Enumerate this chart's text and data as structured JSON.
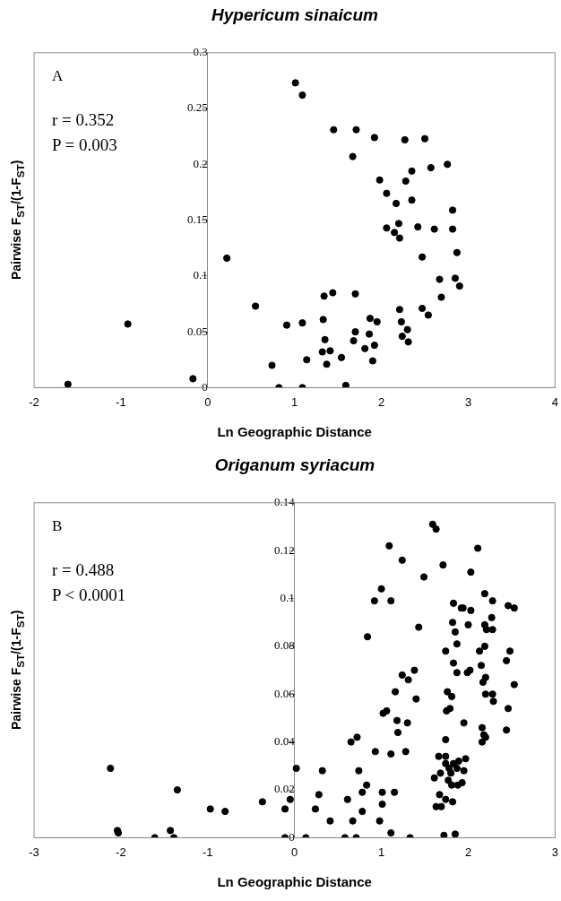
{
  "chart_data": [
    {
      "type": "scatter",
      "title": "Hypericum sinaicum",
      "xlabel": "Ln Geographic Distance",
      "ylabel": "Pairwise F$_{ST}$/(1-F$_{ST}$)",
      "annotations": [
        "A",
        "r = 0.352",
        "P = 0.003"
      ],
      "marker": "circle",
      "grid": false,
      "legend": false,
      "xlim": [
        -2,
        4
      ],
      "xticks": [
        -2,
        -1,
        0,
        1,
        2,
        3,
        4
      ],
      "ylim": [
        0,
        0.3
      ],
      "yticks": [
        0,
        0.05,
        0.1,
        0.15,
        0.2,
        0.25,
        0.3
      ],
      "series": [
        {
          "color": "#000000",
          "x": [
            -1.61,
            -0.92,
            -0.17,
            0.22,
            0.55,
            0.74,
            0.82,
            0.91,
            1.01,
            1.09,
            1.09,
            1.09,
            1.14,
            1.32,
            1.33,
            1.34,
            1.35,
            1.37,
            1.41,
            1.44,
            1.45,
            1.54,
            1.59,
            1.67,
            1.68,
            1.7,
            1.7,
            1.71,
            1.81,
            1.86,
            1.87,
            1.9,
            1.92,
            1.92,
            1.95,
            1.98,
            2.06,
            2.06,
            2.15,
            2.17,
            2.2,
            2.21,
            2.21,
            2.23,
            2.24,
            2.27,
            2.28,
            2.3,
            2.31,
            2.35,
            2.35,
            2.42,
            2.47,
            2.47,
            2.5,
            2.54,
            2.57,
            2.61,
            2.67,
            2.69,
            2.76,
            2.82,
            2.82,
            2.85,
            2.87,
            2.9
          ],
          "values": [
            0.003,
            0.057,
            0.008,
            0.116,
            0.073,
            0.02,
            0.0,
            0.056,
            0.273,
            0.262,
            0.058,
            0.0,
            0.025,
            0.032,
            0.061,
            0.082,
            0.043,
            0.021,
            0.033,
            0.085,
            0.231,
            0.027,
            0.002,
            0.207,
            0.042,
            0.05,
            0.084,
            0.231,
            0.035,
            0.048,
            0.062,
            0.024,
            0.224,
            0.038,
            0.059,
            0.186,
            0.174,
            0.143,
            0.139,
            0.165,
            0.147,
            0.134,
            0.07,
            0.059,
            0.046,
            0.222,
            0.185,
            0.052,
            0.041,
            0.194,
            0.168,
            0.144,
            0.117,
            0.071,
            0.223,
            0.065,
            0.197,
            0.142,
            0.097,
            0.081,
            0.2,
            0.159,
            0.142,
            0.098,
            0.121,
            0.091
          ]
        }
      ]
    },
    {
      "type": "scatter",
      "title": "Origanum syriacum",
      "xlabel": "Ln Geographic Distance",
      "ylabel": "Pairwise F$_{ST}$/(1-F$_{ST}$)",
      "annotations": [
        "B",
        "r = 0.488",
        "P < 0.0001"
      ],
      "marker": "circle",
      "grid": false,
      "legend": false,
      "xlim": [
        -3,
        3
      ],
      "xticks": [
        -3,
        -2,
        -1,
        0,
        1,
        2,
        3
      ],
      "ylim": [
        0,
        0.14
      ],
      "yticks": [
        0,
        0.02,
        0.04,
        0.06,
        0.08,
        0.1,
        0.12,
        0.14
      ],
      "series": [
        {
          "color": "#000000",
          "x": [
            -2.12,
            -2.04,
            -2.03,
            -1.61,
            -1.43,
            -1.39,
            -1.35,
            -0.97,
            -0.8,
            -0.37,
            -0.11,
            -0.11,
            -0.05,
            0.02,
            0.13,
            0.24,
            0.28,
            0.32,
            0.41,
            0.58,
            0.61,
            0.65,
            0.67,
            0.71,
            0.72,
            0.74,
            0.78,
            0.78,
            0.83,
            0.84,
            0.92,
            0.93,
            0.98,
            1.0,
            1.01,
            1.01,
            1.02,
            1.06,
            1.09,
            1.11,
            1.11,
            1.11,
            1.15,
            1.16,
            1.18,
            1.19,
            1.24,
            1.24,
            1.28,
            1.3,
            1.31,
            1.33,
            1.38,
            1.4,
            1.43,
            1.49,
            1.59,
            1.63,
            1.61,
            1.63,
            1.66,
            1.67,
            1.68,
            1.69,
            1.71,
            1.72,
            1.74,
            1.74,
            1.74,
            1.74,
            1.74,
            1.75,
            1.76,
            1.77,
            1.78,
            1.79,
            1.8,
            1.81,
            1.81,
            1.82,
            1.82,
            1.83,
            1.83,
            1.83,
            1.85,
            1.85,
            1.87,
            1.87,
            1.87,
            1.88,
            1.89,
            1.92,
            1.93,
            1.94,
            1.95,
            1.95,
            1.97,
            1.99,
            2.0,
            2.02,
            2.03,
            2.03,
            2.11,
            2.13,
            2.15,
            2.16,
            2.16,
            2.17,
            2.18,
            2.19,
            2.19,
            2.19,
            2.2,
            2.2,
            2.2,
            2.21,
            2.27,
            2.28,
            2.28,
            2.28,
            2.29,
            2.44,
            2.44,
            2.46,
            2.46,
            2.48,
            2.53,
            2.53
          ],
          "values": [
            0.029,
            0.003,
            0.002,
            0.0,
            0.003,
            0.0,
            0.02,
            0.012,
            0.011,
            0.015,
            0.012,
            0.0,
            0.016,
            0.029,
            0.0,
            0.012,
            0.018,
            0.028,
            0.007,
            0.0,
            0.016,
            0.04,
            0.007,
            0.0,
            0.042,
            0.028,
            0.011,
            0.019,
            0.022,
            0.084,
            0.099,
            0.036,
            0.007,
            0.104,
            0.014,
            0.019,
            0.052,
            0.053,
            0.122,
            0.099,
            0.035,
            0.002,
            0.019,
            0.061,
            0.049,
            0.044,
            0.116,
            0.068,
            0.036,
            0.048,
            0.066,
            0.0,
            0.07,
            0.058,
            0.088,
            0.109,
            0.131,
            0.129,
            0.025,
            0.013,
            0.034,
            0.018,
            0.027,
            0.013,
            0.114,
            0.001,
            0.041,
            0.034,
            0.031,
            0.078,
            0.016,
            0.053,
            0.061,
            0.024,
            0.029,
            0.054,
            0.027,
            0.059,
            0.022,
            0.015,
            0.09,
            0.098,
            0.031,
            0.073,
            0.086,
            0.0015,
            0.069,
            0.081,
            0.029,
            0.022,
            0.032,
            0.096,
            0.023,
            0.096,
            0.048,
            0.028,
            0.033,
            0.069,
            0.089,
            0.07,
            0.111,
            0.095,
            0.121,
            0.078,
            0.072,
            0.046,
            0.04,
            0.065,
            0.043,
            0.102,
            0.089,
            0.08,
            0.067,
            0.06,
            0.042,
            0.087,
            0.092,
            0.099,
            0.087,
            0.06,
            0.057,
            0.045,
            0.074,
            0.097,
            0.054,
            0.078,
            0.096,
            0.064
          ]
        }
      ]
    }
  ]
}
